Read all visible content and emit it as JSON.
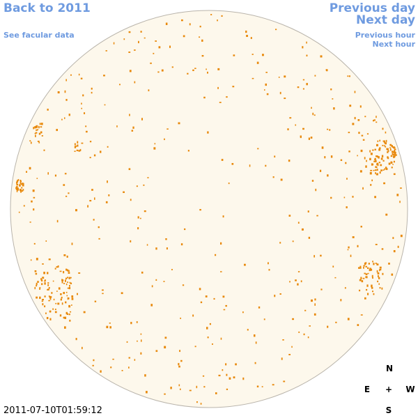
{
  "navigation": {
    "back": "Back to 2011",
    "facular_data": "See facular data",
    "previous_day": "Previous day",
    "next_day": "Next day",
    "previous_hour": "Previous hour",
    "next_hour": "Next hour"
  },
  "timestamp": "2011-07-10T01:59:12",
  "compass": {
    "north": "N",
    "east": "E",
    "center": "+",
    "west": "W",
    "south": "S"
  }
}
